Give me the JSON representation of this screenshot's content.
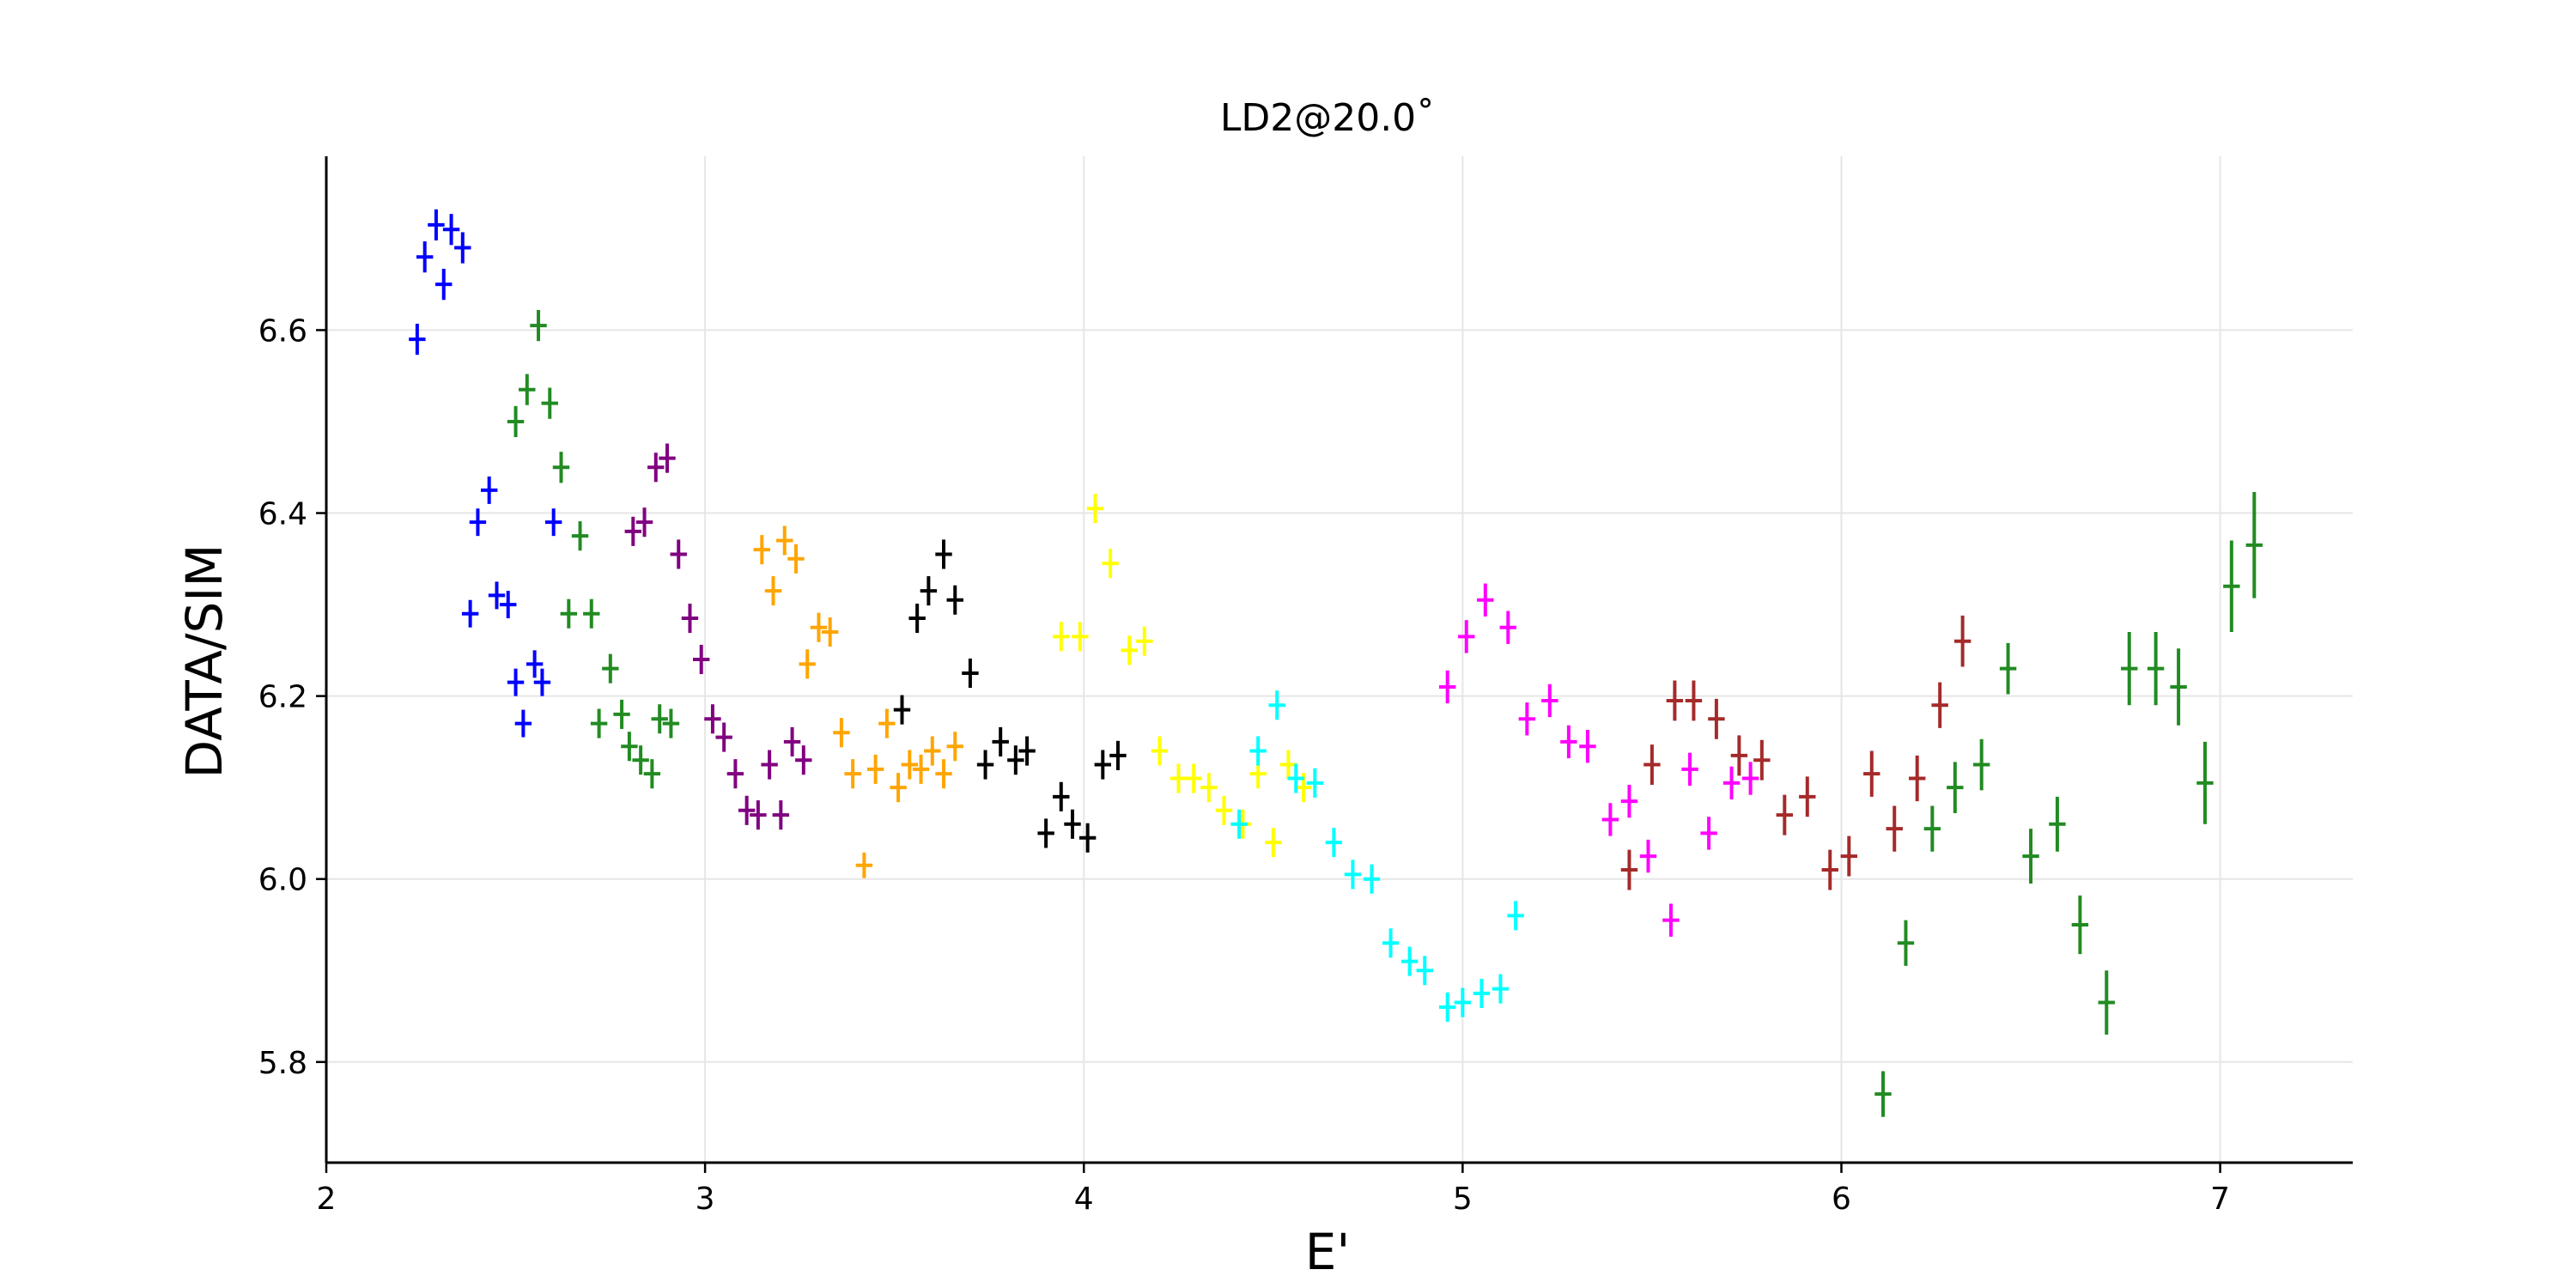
{
  "chart_data": {
    "type": "scatter",
    "title": "LD2@20.0˚",
    "xlabel": "E'",
    "ylabel": "DATA/SIM",
    "xlim": [
      2.0,
      7.35
    ],
    "ylim": [
      5.69,
      6.79
    ],
    "xticks": [
      2,
      3,
      4,
      5,
      6,
      7
    ],
    "xtick_labels": [
      "2",
      "3",
      "4",
      "5",
      "6",
      "7"
    ],
    "yticks": [
      5.8,
      6.0,
      6.2,
      6.4,
      6.6
    ],
    "ytick_labels": [
      "5.8",
      "6.0",
      "6.2",
      "6.4",
      "6.6"
    ],
    "grid": true,
    "legend": "none",
    "marker": "errorbar",
    "x_half_width": 0.022,
    "series": [
      {
        "color": "#0000ff",
        "x": [
          2.24,
          2.26,
          2.29,
          2.31,
          2.33,
          2.36,
          2.38,
          2.4,
          2.43,
          2.45,
          2.48,
          2.5,
          2.52,
          2.55,
          2.57,
          2.6
        ],
        "y": [
          6.59,
          6.68,
          6.715,
          6.65,
          6.71,
          6.69,
          6.29,
          6.39,
          6.425,
          6.31,
          6.3,
          6.215,
          6.17,
          6.235,
          6.215,
          6.39
        ],
        "yerr": [
          0.017,
          0.017,
          0.017,
          0.017,
          0.017,
          0.017,
          0.015,
          0.015,
          0.015,
          0.015,
          0.015,
          0.015,
          0.015,
          0.015,
          0.015,
          0.015
        ]
      },
      {
        "color": "#228b22",
        "x": [
          2.5,
          2.53,
          2.56,
          2.59,
          2.62,
          2.64,
          2.67,
          2.7,
          2.72,
          2.75,
          2.78,
          2.8,
          2.83,
          2.86,
          2.88,
          2.91
        ],
        "y": [
          6.5,
          6.535,
          6.605,
          6.52,
          6.45,
          6.29,
          6.375,
          6.29,
          6.17,
          6.23,
          6.18,
          6.145,
          6.13,
          6.115,
          6.175,
          6.17
        ],
        "yerr": [
          0.017,
          0.017,
          0.017,
          0.017,
          0.017,
          0.016,
          0.016,
          0.016,
          0.016,
          0.016,
          0.016,
          0.016,
          0.016,
          0.016,
          0.016,
          0.016
        ]
      },
      {
        "color": "#800080",
        "x": [
          2.81,
          2.84,
          2.87,
          2.9,
          2.93,
          2.96,
          2.99,
          3.02,
          3.05,
          3.08,
          3.11,
          3.14,
          3.17,
          3.2,
          3.23,
          3.26
        ],
        "y": [
          6.38,
          6.39,
          6.45,
          6.46,
          6.355,
          6.285,
          6.24,
          6.175,
          6.155,
          6.115,
          6.075,
          6.07,
          6.125,
          6.07,
          6.15,
          6.13
        ],
        "yerr": [
          0.016,
          0.016,
          0.016,
          0.016,
          0.016,
          0.016,
          0.016,
          0.016,
          0.016,
          0.016,
          0.016,
          0.016,
          0.016,
          0.016,
          0.016,
          0.016
        ]
      },
      {
        "color": "#ffa500",
        "x": [
          3.15,
          3.18,
          3.21,
          3.24,
          3.27,
          3.3,
          3.33,
          3.36,
          3.39,
          3.42,
          3.45,
          3.48,
          3.51,
          3.54,
          3.57,
          3.6,
          3.63,
          3.66
        ],
        "y": [
          6.36,
          6.315,
          6.37,
          6.35,
          6.235,
          6.275,
          6.27,
          6.16,
          6.115,
          6.015,
          6.12,
          6.17,
          6.1,
          6.125,
          6.12,
          6.14,
          6.115,
          6.145
        ],
        "yerr": [
          0.016,
          0.016,
          0.016,
          0.016,
          0.016,
          0.016,
          0.016,
          0.016,
          0.016,
          0.014,
          0.016,
          0.016,
          0.016,
          0.016,
          0.016,
          0.016,
          0.016,
          0.016
        ]
      },
      {
        "color": "#000000",
        "x": [
          3.52,
          3.56,
          3.59,
          3.63,
          3.66,
          3.7,
          3.74,
          3.78,
          3.82,
          3.85,
          3.9,
          3.94,
          3.97,
          4.01,
          4.05,
          4.09
        ],
        "y": [
          6.185,
          6.285,
          6.315,
          6.355,
          6.305,
          6.225,
          6.125,
          6.15,
          6.13,
          6.14,
          6.05,
          6.09,
          6.06,
          6.045,
          6.125,
          6.135
        ],
        "yerr": [
          0.016,
          0.016,
          0.016,
          0.016,
          0.016,
          0.016,
          0.016,
          0.016,
          0.016,
          0.016,
          0.016,
          0.016,
          0.016,
          0.016,
          0.016,
          0.016
        ]
      },
      {
        "color": "#ffff00",
        "x": [
          3.94,
          3.99,
          4.03,
          4.07,
          4.12,
          4.16,
          4.2,
          4.25,
          4.29,
          4.33,
          4.37,
          4.42,
          4.46,
          4.5,
          4.54,
          4.58
        ],
        "y": [
          6.265,
          6.265,
          6.405,
          6.345,
          6.25,
          6.26,
          6.14,
          6.11,
          6.11,
          6.1,
          6.075,
          6.06,
          6.115,
          6.04,
          6.125,
          6.1
        ],
        "yerr": [
          0.016,
          0.016,
          0.016,
          0.016,
          0.016,
          0.016,
          0.016,
          0.016,
          0.016,
          0.016,
          0.016,
          0.016,
          0.016,
          0.016,
          0.016,
          0.016
        ]
      },
      {
        "color": "#00ffff",
        "x": [
          4.41,
          4.46,
          4.51,
          4.56,
          4.61,
          4.66,
          4.71,
          4.76,
          4.81,
          4.86,
          4.9,
          4.96,
          5.0,
          5.05,
          5.1,
          5.14
        ],
        "y": [
          6.06,
          6.14,
          6.19,
          6.11,
          6.105,
          6.04,
          6.005,
          6.0,
          5.93,
          5.91,
          5.9,
          5.86,
          5.865,
          5.875,
          5.88,
          5.96
        ],
        "yerr": [
          0.016,
          0.016,
          0.016,
          0.016,
          0.016,
          0.016,
          0.016,
          0.016,
          0.016,
          0.016,
          0.016,
          0.016,
          0.016,
          0.016,
          0.016,
          0.016
        ]
      },
      {
        "color": "#ff00ff",
        "x": [
          4.96,
          5.01,
          5.06,
          5.12,
          5.17,
          5.23,
          5.28,
          5.33,
          5.39,
          5.44,
          5.49,
          5.55,
          5.6,
          5.65,
          5.71,
          5.76
        ],
        "y": [
          6.21,
          6.265,
          6.305,
          6.275,
          6.175,
          6.195,
          6.15,
          6.145,
          6.065,
          6.085,
          6.025,
          5.955,
          6.12,
          6.05,
          6.105,
          6.11
        ],
        "yerr": [
          0.018,
          0.018,
          0.018,
          0.018,
          0.018,
          0.018,
          0.018,
          0.018,
          0.018,
          0.018,
          0.018,
          0.018,
          0.018,
          0.018,
          0.018,
          0.018
        ]
      },
      {
        "color": "#a52a2a",
        "x": [
          5.44,
          5.5,
          5.56,
          5.61,
          5.67,
          5.73,
          5.79,
          5.85,
          5.91,
          5.97,
          6.02,
          6.08,
          6.14,
          6.2,
          6.26,
          6.32
        ],
        "y": [
          6.01,
          6.125,
          6.195,
          6.195,
          6.175,
          6.135,
          6.13,
          6.07,
          6.09,
          6.01,
          6.025,
          6.115,
          6.055,
          6.11,
          6.19,
          6.26
        ],
        "yerr": [
          0.022,
          0.022,
          0.022,
          0.022,
          0.022,
          0.022,
          0.022,
          0.022,
          0.022,
          0.022,
          0.022,
          0.025,
          0.025,
          0.025,
          0.025,
          0.028
        ]
      },
      {
        "color": "#228b22",
        "x": [
          6.11,
          6.17,
          6.24,
          6.3,
          6.37,
          6.44,
          6.5,
          6.57,
          6.63,
          6.7,
          6.76,
          6.83,
          6.89,
          6.96,
          7.03,
          7.09
        ],
        "y": [
          5.765,
          5.93,
          6.055,
          6.1,
          6.125,
          6.23,
          6.025,
          6.06,
          5.95,
          5.865,
          6.23,
          6.23,
          6.21,
          6.105,
          6.32,
          6.365
        ],
        "yerr": [
          0.025,
          0.025,
          0.025,
          0.028,
          0.028,
          0.028,
          0.03,
          0.03,
          0.032,
          0.035,
          0.04,
          0.04,
          0.042,
          0.045,
          0.05,
          0.058
        ]
      }
    ]
  }
}
